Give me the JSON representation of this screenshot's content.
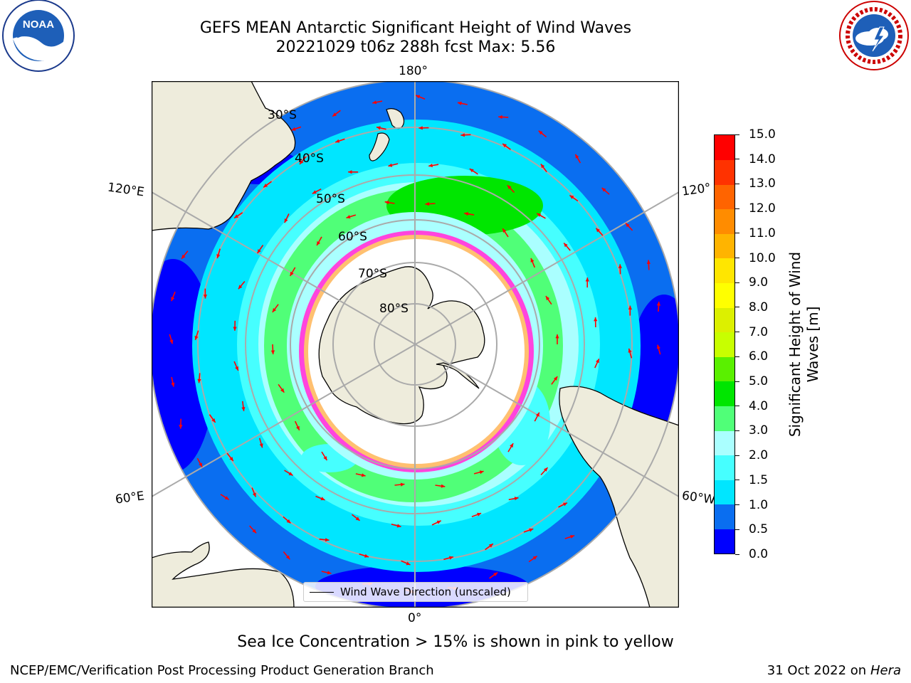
{
  "header": {
    "title_line1": "GEFS MEAN Antarctic Significant Height of Wind Waves",
    "title_line2": "20221029 t06z 288h fcst   Max: 5.56"
  },
  "logos": {
    "left": {
      "name": "noaa-logo",
      "text": "NOAA",
      "ring_text": "NATIONAL OCEANIC AND ATMOSPHERIC ADMINISTRATION · U.S. DEPARTMENT OF COMMERCE"
    },
    "right": {
      "name": "nws-logo",
      "ring_text": "NATIONAL WEATHER SERVICE"
    }
  },
  "map": {
    "projection": "south-polar-stereographic",
    "longitude_labels": {
      "top": "180°",
      "bottom": "0°",
      "left_upper": "120°E",
      "left_lower": "60°E",
      "right_upper": "120°",
      "right_lower": "60°W"
    },
    "latitude_labels": [
      "30°S",
      "40°S",
      "50°S",
      "60°S",
      "70°S",
      "80°S"
    ],
    "legend": {
      "label": "Wind Wave Direction (unscaled)"
    },
    "colors": {
      "land": "#eeecdc",
      "sea_ice": "#ffffff",
      "ice_edge": "#ff44dd",
      "arrow": "#ff0000",
      "grid": "#aaaaaa"
    }
  },
  "colorbar": {
    "title_line1": "Significant Height of Wind",
    "title_line2": "Waves [m]",
    "ticks": [
      "0.0",
      "0.5",
      "1.0",
      "1.5",
      "2.0",
      "3.0",
      "4.0",
      "5.0",
      "6.0",
      "7.0",
      "8.0",
      "9.0",
      "10.0",
      "11.0",
      "12.0",
      "13.0",
      "14.0",
      "15.0"
    ],
    "colors": [
      "#0000ff",
      "#0a6ef0",
      "#00e6ff",
      "#46ffff",
      "#aaffff",
      "#50ff78",
      "#00e600",
      "#5af000",
      "#c8ff00",
      "#dcf000",
      "#ffff00",
      "#ffe600",
      "#ffb400",
      "#ff8c00",
      "#ff6400",
      "#ff3200",
      "#ff0000"
    ]
  },
  "footer": {
    "ice_note": "Sea Ice Concentration > 15% is shown in pink to yellow",
    "credit": "NCEP/EMC/Verification Post Processing Product Generation Branch",
    "date": "31 Oct 2022 on",
    "machine": "Hera"
  }
}
